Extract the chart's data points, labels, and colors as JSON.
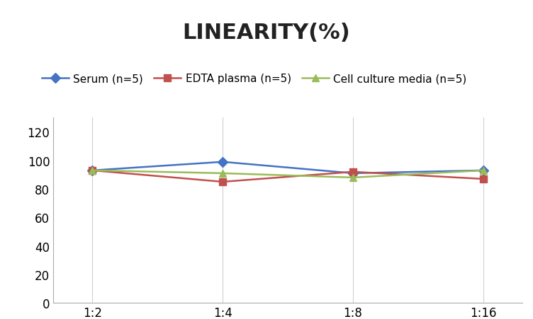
{
  "title": "LINEARITY(%)",
  "x_labels": [
    "1:2",
    "1:4",
    "1:8",
    "1:16"
  ],
  "series": [
    {
      "label": "Serum (n=5)",
      "values": [
        93,
        99,
        91,
        93
      ],
      "color": "#4472C4",
      "marker": "D",
      "linewidth": 1.8,
      "markersize": 7
    },
    {
      "label": "EDTA plasma (n=5)",
      "values": [
        93,
        85,
        92,
        87
      ],
      "color": "#C0504D",
      "marker": "s",
      "linewidth": 1.8,
      "markersize": 7
    },
    {
      "label": "Cell culture media (n=5)",
      "values": [
        93,
        91,
        88,
        93
      ],
      "color": "#9BBB59",
      "marker": "^",
      "linewidth": 1.8,
      "markersize": 7
    }
  ],
  "ylim": [
    0,
    130
  ],
  "yticks": [
    0,
    20,
    40,
    60,
    80,
    100,
    120
  ],
  "background_color": "#ffffff",
  "title_fontsize": 22,
  "legend_fontsize": 11,
  "tick_fontsize": 12,
  "grid_color": "#d0d0d0",
  "grid_linewidth": 0.8
}
